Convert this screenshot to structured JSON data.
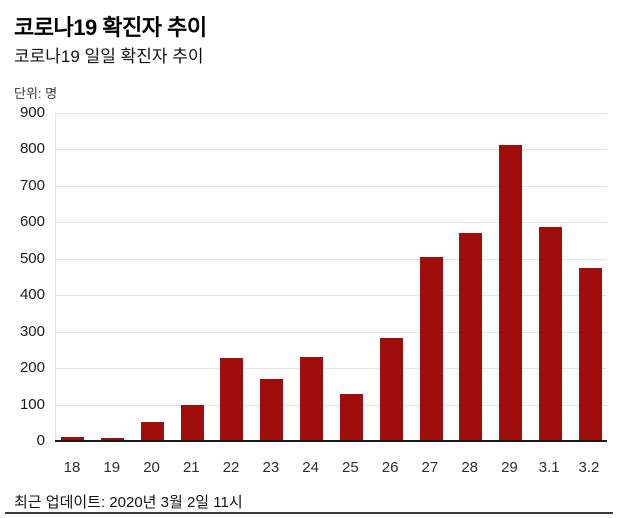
{
  "header": {
    "title": "코로나19 확진자 추이",
    "subtitle": "코로나19 일일 확진자 추이",
    "unit_label": "단위: 명"
  },
  "footer": {
    "updated": "최근 업데이트: 2020년 3월 2일 11시"
  },
  "colors": {
    "bar": "#a00d0d",
    "grid": "#e4e4e4",
    "axis": "#1a1a1a"
  },
  "chart_data": {
    "type": "bar",
    "title": "코로나19 확진자 추이",
    "subtitle": "코로나19 일일 확진자 추이",
    "unit": "명",
    "categories": [
      "18",
      "19",
      "20",
      "21",
      "22",
      "23",
      "24",
      "25",
      "26",
      "27",
      "28",
      "29",
      "3.1",
      "3.2"
    ],
    "values": [
      12,
      9,
      53,
      100,
      229,
      169,
      231,
      130,
      284,
      505,
      571,
      813,
      586,
      476
    ],
    "xlabel": "",
    "ylabel": "명",
    "ylim": [
      0,
      900
    ],
    "yticks": [
      900,
      800,
      700,
      600,
      500,
      400,
      300,
      200,
      100,
      0
    ],
    "grid": true,
    "legend": false,
    "bar_color": "#a00d0d"
  }
}
